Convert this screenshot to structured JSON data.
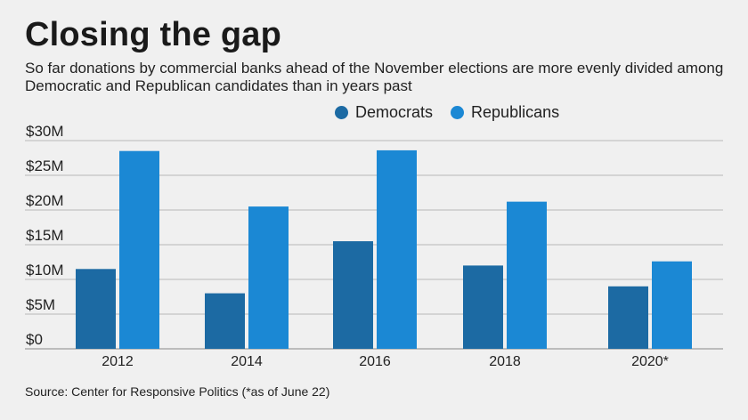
{
  "title": "Closing the gap",
  "subtitle": "So far donations by commercial banks ahead of the November elections are more evenly divided among Democratic and Republican candidates than in years past",
  "source": "Source: Center for Responsive Politics (*as of June 22)",
  "colors": {
    "democrats": "#1c6aa3",
    "republicans": "#1b88d4",
    "grid": "#b8b8b8",
    "background": "#f0f0f0"
  },
  "chart_data": {
    "type": "bar",
    "categories": [
      "2012",
      "2014",
      "2016",
      "2018",
      "2020*"
    ],
    "series": [
      {
        "name": "Democrats",
        "values": [
          11.5,
          8.0,
          15.5,
          12.0,
          9.0
        ]
      },
      {
        "name": "Republicans",
        "values": [
          28.5,
          20.5,
          28.6,
          21.2,
          12.6
        ]
      }
    ],
    "yticks": [
      "$0",
      "$5M",
      "$10M",
      "$15M",
      "$20M",
      "$25M",
      "$30M"
    ],
    "ylim": [
      0,
      30
    ],
    "unit": "millions of dollars",
    "grid": true,
    "legend_position": "top-center"
  }
}
